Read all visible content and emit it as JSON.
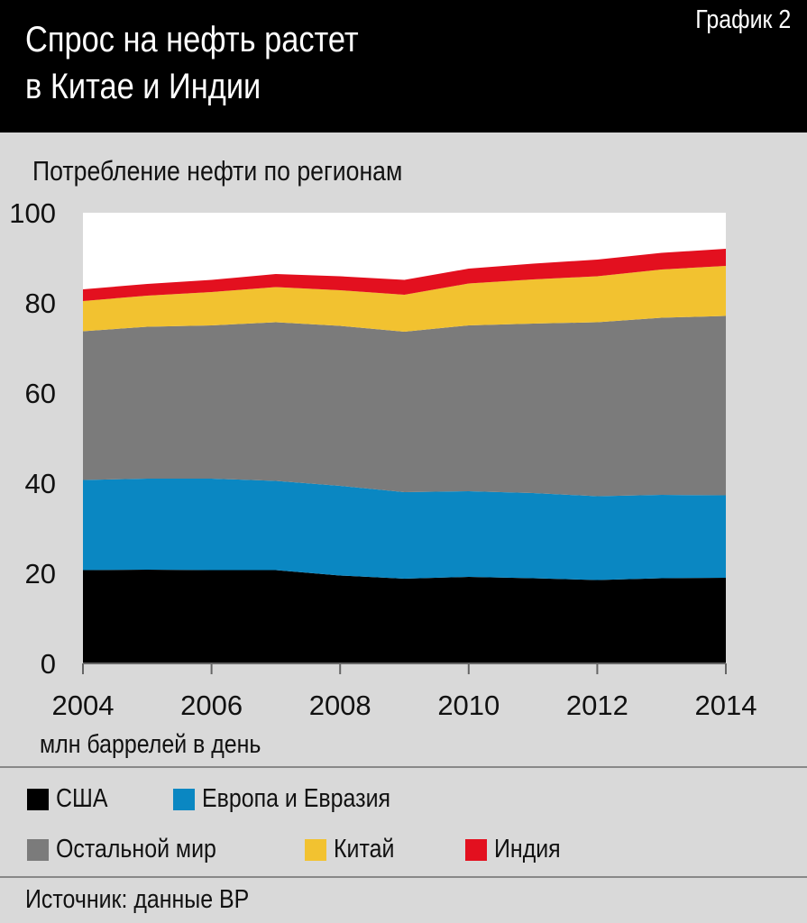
{
  "header": {
    "title_line1": "Спрос на нефть растет",
    "title_line2": "в Китае и Индии",
    "chart_number": "График 2"
  },
  "subtitle": "Потребление нефти по регионам",
  "unit_label": "млн баррелей в день",
  "source": "Источник: данные BP",
  "colors": {
    "background": "#d9d9d9",
    "usa": "#000000",
    "europe": "#0a87c2",
    "rest": "#7b7b7b",
    "china": "#f2c230",
    "india": "#e3101f"
  },
  "chart_data": {
    "type": "area",
    "stacked": true,
    "x": [
      2004,
      2005,
      2006,
      2007,
      2008,
      2009,
      2010,
      2011,
      2012,
      2013,
      2014
    ],
    "x_ticks": [
      "2004",
      "2006",
      "2008",
      "2010",
      "2012",
      "2014"
    ],
    "y_ticks": [
      "0",
      "20",
      "40",
      "60",
      "80",
      "100"
    ],
    "ylim": [
      0,
      100
    ],
    "xlim": [
      2004,
      2014
    ],
    "grid": false,
    "legend_position": "bottom",
    "series": [
      {
        "name": "США",
        "color": "#000000",
        "values": [
          20.7,
          20.8,
          20.7,
          20.7,
          19.5,
          18.8,
          19.2,
          18.9,
          18.5,
          18.9,
          19.0
        ]
      },
      {
        "name": "Европа и Евразия",
        "color": "#0a87c2",
        "values": [
          20.0,
          20.2,
          20.3,
          19.8,
          19.9,
          19.2,
          19.0,
          18.9,
          18.6,
          18.5,
          18.3
        ]
      },
      {
        "name": "Остальной мир",
        "color": "#7b7b7b",
        "values": [
          33.0,
          33.7,
          34.0,
          35.2,
          35.5,
          35.6,
          36.8,
          37.6,
          38.6,
          39.3,
          39.8
        ]
      },
      {
        "name": "Китай",
        "color": "#f2c230",
        "values": [
          6.7,
          6.9,
          7.4,
          7.8,
          7.9,
          8.2,
          9.3,
          9.8,
          10.2,
          10.7,
          11.1
        ]
      },
      {
        "name": "Индия",
        "color": "#e3101f",
        "values": [
          2.6,
          2.6,
          2.7,
          2.9,
          3.1,
          3.3,
          3.3,
          3.5,
          3.7,
          3.7,
          3.8
        ]
      }
    ]
  }
}
